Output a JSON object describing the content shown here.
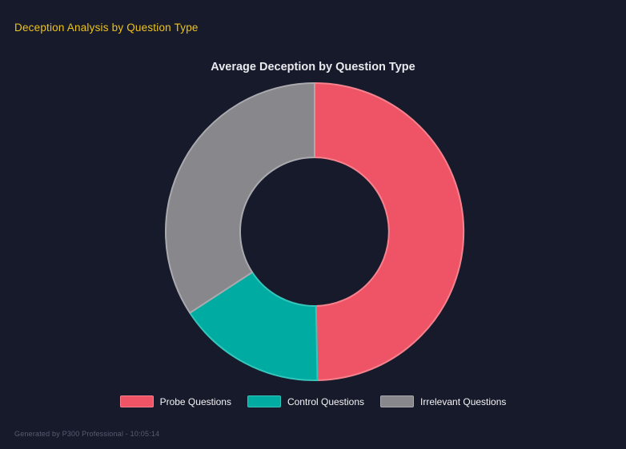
{
  "page": {
    "title": "Deception Analysis by Question Type",
    "footer": "Generated by P300 Professional - 10:05:14",
    "background_color": "#171a2b",
    "title_color": "#edc31d",
    "footer_color": "#575c70"
  },
  "chart": {
    "title": "Average Deception by Question Type",
    "title_color": "#e8eaee",
    "legend_text_color": "#f3f4f6"
  },
  "chart_data": {
    "type": "pie",
    "subtype": "doughnut",
    "title": "Average Deception by Question Type",
    "legend_position": "bottom",
    "start_angle_deg": 0,
    "direction": "clockwise",
    "inner_radius_ratio": 0.5,
    "categories": [
      "Probe Questions",
      "Control Questions",
      "Irrelevant Questions"
    ],
    "values": [
      49.7,
      16.1,
      34.2
    ],
    "series": [
      {
        "label": "Probe Questions",
        "value": 49.7,
        "color": "#ef5466",
        "border_color": "#f6828e"
      },
      {
        "label": "Control Questions",
        "value": 16.1,
        "color": "#00aba1",
        "border_color": "#34c6bb"
      },
      {
        "label": "Irrelevant Questions",
        "value": 34.2,
        "color": "#88888c",
        "border_color": "#aaaaae"
      }
    ]
  }
}
